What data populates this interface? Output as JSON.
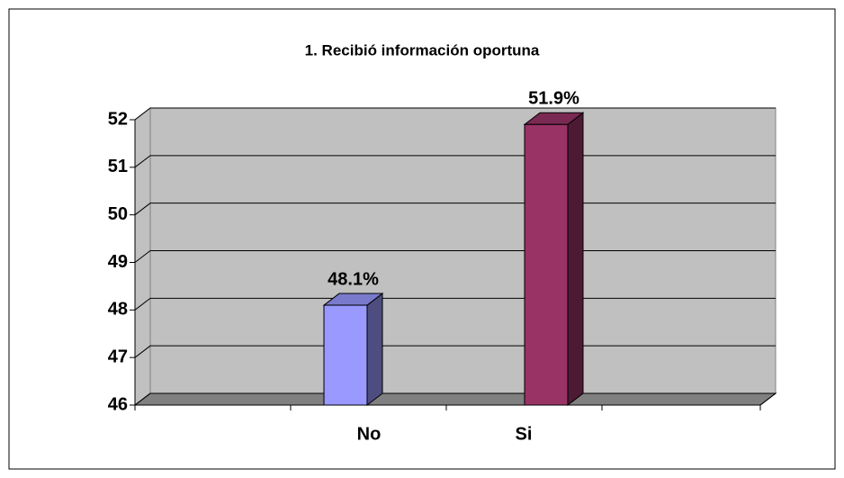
{
  "chart_data": {
    "type": "bar3d",
    "title": "1. Recibió información  oportuna",
    "categories": [
      "No",
      "Si"
    ],
    "values": [
      48.1,
      51.9
    ],
    "value_labels": [
      "48.1%",
      "51.9%"
    ],
    "colors": [
      "#9999ff",
      "#993366"
    ],
    "ylim": [
      46,
      52
    ],
    "yticks": [
      46,
      47,
      48,
      49,
      50,
      51,
      52
    ],
    "grid": true
  }
}
